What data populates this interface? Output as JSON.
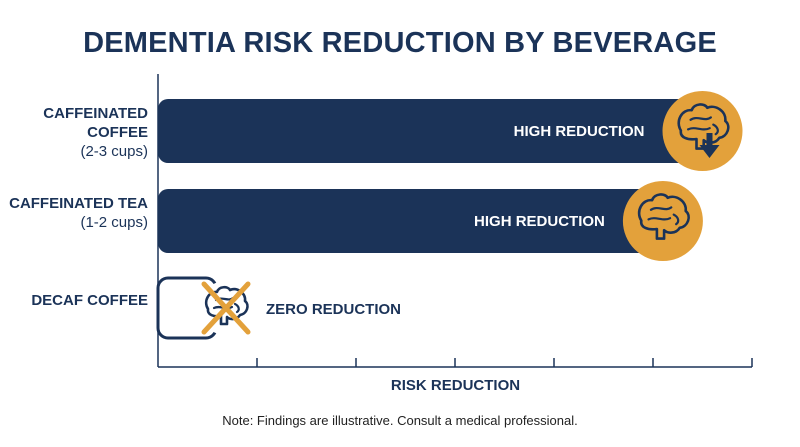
{
  "colors": {
    "title": "#1b3358",
    "bar": "#1b3358",
    "axis": "#1b3358",
    "icon_circle": "#e3a13b",
    "bar_label": "#ffffff"
  },
  "chart_data": {
    "type": "bar",
    "orientation": "horizontal",
    "title": "DEMENTIA RISK REDUCTION BY BEVERAGE",
    "xlabel": "RISK REDUCTION",
    "ylabel": "",
    "xlim": [
      0,
      6
    ],
    "grid": false,
    "categories": [
      {
        "name": "CAFFEINATED COFFEE",
        "detail": "(2-3 cups)"
      },
      {
        "name": "CAFFEINATED TEA",
        "detail": "(1-2 cups)"
      },
      {
        "name": "DECAF COFFEE",
        "detail": ""
      }
    ],
    "values": [
      5.5,
      5.1,
      0.5
    ],
    "bar_labels": [
      "HIGH REDUCTION",
      "HIGH REDUCTION",
      "ZERO REDUCTION"
    ],
    "icons": [
      "brain-down-arrow-icon",
      "brain-icon",
      "brain-crossed-icon"
    ]
  },
  "footer": {
    "note": "Note: Findings are illustrative. Consult a medical professional."
  }
}
